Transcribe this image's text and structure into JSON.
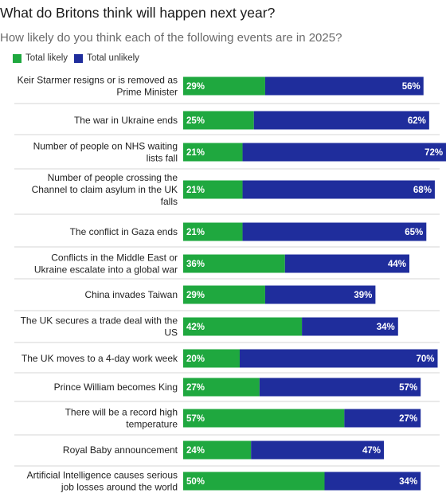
{
  "title": "What do Britons think will happen next year?",
  "subtitle": "How likely do you think each of the following events are in 2025?",
  "colors": {
    "likely": "#1fa83f",
    "unlikely": "#1f2d9c"
  },
  "chart_data": {
    "type": "bar",
    "orientation": "horizontal",
    "stacked": true,
    "title": "What do Britons think will happen next year?",
    "subtitle": "How likely do you think each of the following events are in 2025?",
    "legend_position": "top-left",
    "categories": [
      [
        "Keir Starmer resigns or is removed as",
        "Prime Minister"
      ],
      [
        "The war in Ukraine ends"
      ],
      [
        "Number of people on NHS waiting",
        "lists fall"
      ],
      [
        "Number of people crossing the",
        "Channel to claim asylum in the UK",
        "falls"
      ],
      [
        "The conflict in Gaza ends"
      ],
      [
        "Conflicts in the Middle East or",
        "Ukraine escalate into a global war"
      ],
      [
        "China invades Taiwan"
      ],
      [
        "The UK secures a trade deal with the",
        "US"
      ],
      [
        "The UK moves to a 4-day work week"
      ],
      [
        "Prince William becomes King"
      ],
      [
        "There will be a record high",
        "temperature"
      ],
      [
        "Royal Baby announcement"
      ],
      [
        "Artificial Intelligence causes serious",
        "job losses around the world"
      ]
    ],
    "series": [
      {
        "name": "Total likely",
        "values": [
          29,
          25,
          21,
          21,
          21,
          36,
          29,
          42,
          20,
          27,
          57,
          24,
          50
        ]
      },
      {
        "name": "Total unlikely",
        "values": [
          56,
          62,
          72,
          68,
          65,
          44,
          39,
          34,
          70,
          57,
          27,
          47,
          34
        ]
      }
    ],
    "value_suffix": "%",
    "xlim": [
      0,
      92
    ],
    "grid": false
  }
}
